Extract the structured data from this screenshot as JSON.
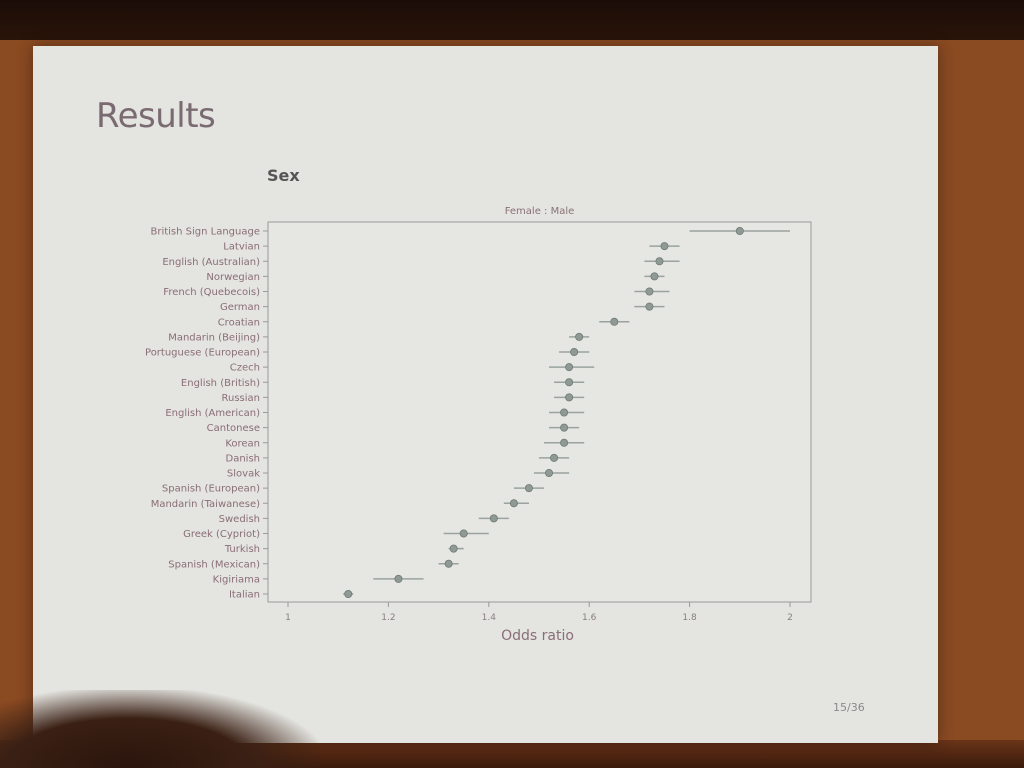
{
  "slide": {
    "title": "Results",
    "page_number": "15/36"
  },
  "chart_data": {
    "type": "scatter",
    "title": "Sex",
    "subtitle": "Female : Male",
    "xlabel": "Odds ratio",
    "ylabel": "",
    "xlim": [
      1.0,
      2.0
    ],
    "xticks": [
      1.0,
      1.2,
      1.4,
      1.6,
      1.8,
      2.0
    ],
    "xtick_labels": [
      "1",
      "1.2",
      "1.4",
      "1.6",
      "1.8",
      "2"
    ],
    "grid": false,
    "point_color": "#8f9a95",
    "categories": [
      "British Sign Language",
      "Latvian",
      "English (Australian)",
      "Norwegian",
      "French (Quebecois)",
      "German",
      "Croatian",
      "Mandarin (Beijing)",
      "Portuguese (European)",
      "Czech",
      "English (British)",
      "Russian",
      "English (American)",
      "Cantonese",
      "Korean",
      "Danish",
      "Slovak",
      "Spanish (European)",
      "Mandarin (Taiwanese)",
      "Swedish",
      "Greek (Cypriot)",
      "Turkish",
      "Spanish (Mexican)",
      "Kigiriama",
      "Italian"
    ],
    "odds_ratio": [
      1.9,
      1.75,
      1.74,
      1.73,
      1.72,
      1.72,
      1.65,
      1.58,
      1.57,
      1.56,
      1.56,
      1.56,
      1.55,
      1.55,
      1.55,
      1.53,
      1.52,
      1.48,
      1.45,
      1.41,
      1.35,
      1.33,
      1.32,
      1.22,
      1.12
    ],
    "ci_low": [
      1.8,
      1.72,
      1.71,
      1.71,
      1.69,
      1.69,
      1.62,
      1.56,
      1.54,
      1.52,
      1.53,
      1.53,
      1.52,
      1.52,
      1.51,
      1.5,
      1.49,
      1.45,
      1.43,
      1.38,
      1.31,
      1.32,
      1.3,
      1.17,
      1.11
    ],
    "ci_high": [
      2.0,
      1.78,
      1.78,
      1.75,
      1.76,
      1.75,
      1.68,
      1.6,
      1.6,
      1.61,
      1.59,
      1.59,
      1.59,
      1.58,
      1.59,
      1.56,
      1.56,
      1.51,
      1.48,
      1.44,
      1.4,
      1.35,
      1.34,
      1.27,
      1.13
    ]
  }
}
